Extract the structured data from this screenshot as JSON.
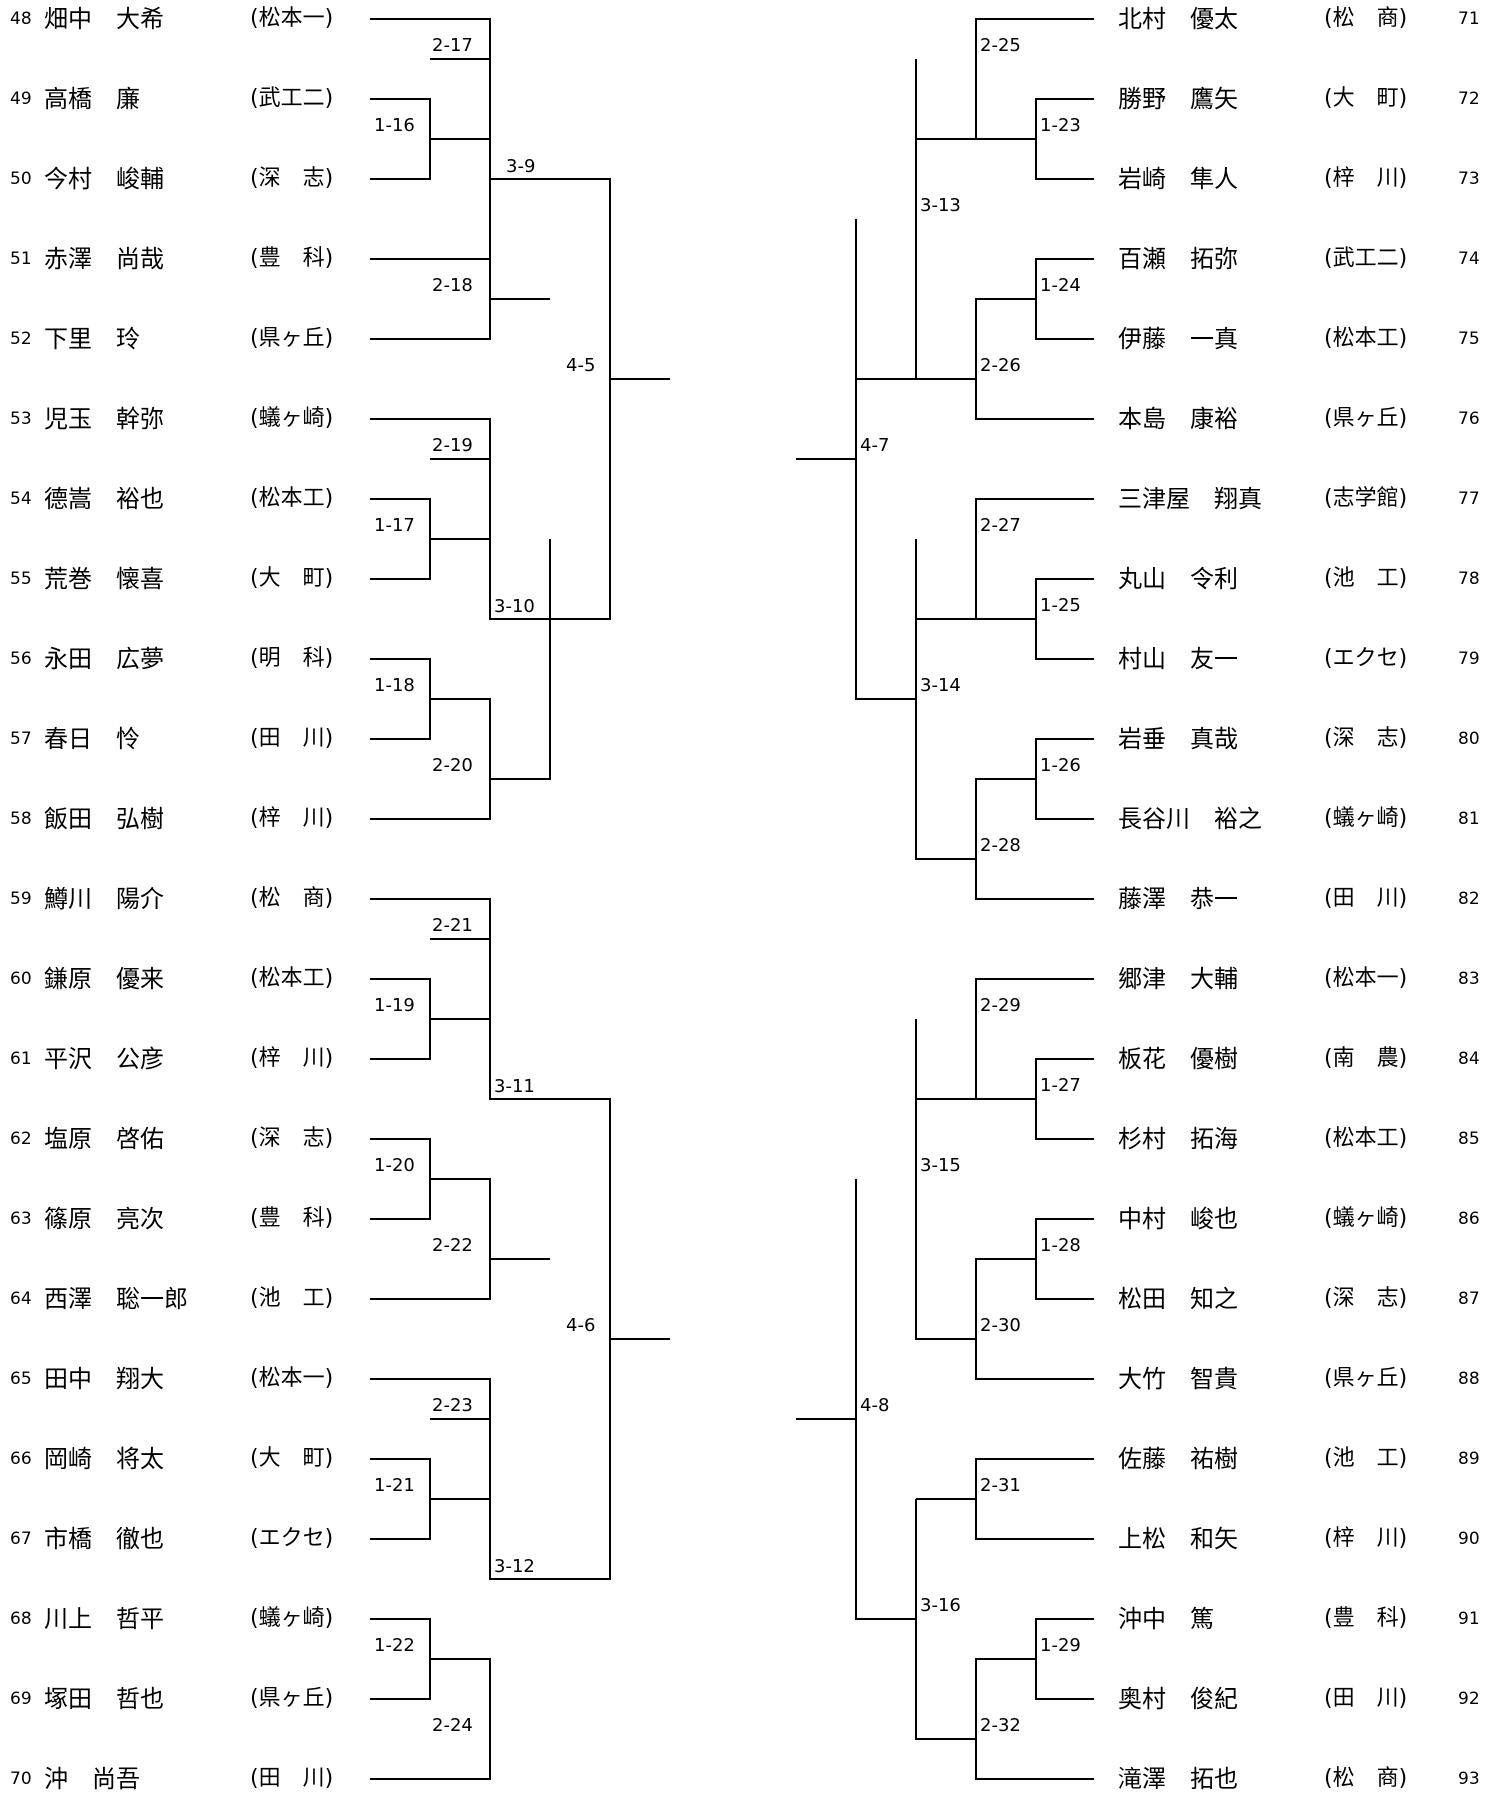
{
  "left_players": [
    {
      "num": "48",
      "name": "畑中　大希",
      "school": "(松本一)"
    },
    {
      "num": "49",
      "name": "高橋　廉",
      "school": "(武工二)"
    },
    {
      "num": "50",
      "name": "今村　峻輔",
      "school": "(深　志)"
    },
    {
      "num": "51",
      "name": "赤澤　尚哉",
      "school": "(豊　科)"
    },
    {
      "num": "52",
      "name": "下里　玲",
      "school": "(県ヶ丘)"
    },
    {
      "num": "53",
      "name": "児玉　幹弥",
      "school": "(蟻ヶ崎)"
    },
    {
      "num": "54",
      "name": "德嵩　裕也",
      "school": "(松本工)"
    },
    {
      "num": "55",
      "name": "荒巻　懐喜",
      "school": "(大　町)"
    },
    {
      "num": "56",
      "name": "永田　広夢",
      "school": "(明　科)"
    },
    {
      "num": "57",
      "name": "春日　怜",
      "school": "(田　川)"
    },
    {
      "num": "58",
      "name": "飯田　弘樹",
      "school": "(梓　川)"
    },
    {
      "num": "59",
      "name": "鱒川　陽介",
      "school": "(松　商)"
    },
    {
      "num": "60",
      "name": "鎌原　優来",
      "school": "(松本工)"
    },
    {
      "num": "61",
      "name": "平沢　公彦",
      "school": "(梓　川)"
    },
    {
      "num": "62",
      "name": "塩原　啓佑",
      "school": "(深　志)"
    },
    {
      "num": "63",
      "name": "篠原　亮次",
      "school": "(豊　科)"
    },
    {
      "num": "64",
      "name": "西澤　聡一郎",
      "school": "(池　工)"
    },
    {
      "num": "65",
      "name": "田中　翔大",
      "school": "(松本一)"
    },
    {
      "num": "66",
      "name": "岡崎　将太",
      "school": "(大　町)"
    },
    {
      "num": "67",
      "name": "市橋　徹也",
      "school": "(エクセ)"
    },
    {
      "num": "68",
      "name": "川上　哲平",
      "school": "(蟻ヶ崎)"
    },
    {
      "num": "69",
      "name": "塚田　哲也",
      "school": "(県ヶ丘)"
    },
    {
      "num": "70",
      "name": "沖　尚吾",
      "school": "(田　川)"
    }
  ],
  "right_players": [
    {
      "num": "71",
      "name": "北村　優太",
      "school": "(松　商)"
    },
    {
      "num": "72",
      "name": "勝野　鷹矢",
      "school": "(大　町)"
    },
    {
      "num": "73",
      "name": "岩崎　隼人",
      "school": "(梓　川)"
    },
    {
      "num": "74",
      "name": "百瀬　拓弥",
      "school": "(武工二)"
    },
    {
      "num": "75",
      "name": "伊藤　一真",
      "school": "(松本工)"
    },
    {
      "num": "76",
      "name": "本島　康裕",
      "school": "(県ヶ丘)"
    },
    {
      "num": "77",
      "name": "三津屋　翔真",
      "school": "(志学館)"
    },
    {
      "num": "78",
      "name": "丸山　令利",
      "school": "(池　工)"
    },
    {
      "num": "79",
      "name": "村山　友一",
      "school": "(エクセ)"
    },
    {
      "num": "80",
      "name": "岩垂　真哉",
      "school": "(深　志)"
    },
    {
      "num": "81",
      "name": "長谷川　裕之",
      "school": "(蟻ヶ崎)"
    },
    {
      "num": "82",
      "name": "藤澤　恭一",
      "school": "(田　川)"
    },
    {
      "num": "83",
      "name": "郷津　大輔",
      "school": "(松本一)"
    },
    {
      "num": "84",
      "name": "板花　優樹",
      "school": "(南　農)"
    },
    {
      "num": "85",
      "name": "杉村　拓海",
      "school": "(松本工)"
    },
    {
      "num": "86",
      "name": "中村　峻也",
      "school": "(蟻ヶ崎)"
    },
    {
      "num": "87",
      "name": "松田　知之",
      "school": "(深　志)"
    },
    {
      "num": "88",
      "name": "大竹　智貴",
      "school": "(県ヶ丘)"
    },
    {
      "num": "89",
      "name": "佐藤　祐樹",
      "school": "(池　工)"
    },
    {
      "num": "90",
      "name": "上松　和矢",
      "school": "(梓　川)"
    },
    {
      "num": "91",
      "name": "沖中　篤",
      "school": "(豊　科)"
    },
    {
      "num": "92",
      "name": "奥村　俊紀",
      "school": "(田　川)"
    },
    {
      "num": "93",
      "name": "滝澤　拓也",
      "school": "(松　商)"
    }
  ],
  "left_matches": {
    "m1_16": "1-16",
    "m1_17": "1-17",
    "m1_18": "1-18",
    "m1_19": "1-19",
    "m1_20": "1-20",
    "m1_21": "1-21",
    "m1_22": "1-22",
    "m2_17": "2-17",
    "m2_18": "2-18",
    "m2_19": "2-19",
    "m2_20": "2-20",
    "m2_21": "2-21",
    "m2_22": "2-22",
    "m2_23": "2-23",
    "m2_24": "2-24",
    "m3_9": "3-9",
    "m3_10": "3-10",
    "m3_11": "3-11",
    "m3_12": "3-12",
    "m4_5": "4-5",
    "m4_6": "4-6"
  },
  "right_matches": {
    "m1_23": "1-23",
    "m1_24": "1-24",
    "m1_25": "1-25",
    "m1_26": "1-26",
    "m1_27": "1-27",
    "m1_28": "1-28",
    "m1_29": "1-29",
    "m2_25": "2-25",
    "m2_26": "2-26",
    "m2_27": "2-27",
    "m2_28": "2-28",
    "m2_29": "2-29",
    "m2_30": "2-30",
    "m2_31": "2-31",
    "m2_32": "2-32",
    "m3_13": "3-13",
    "m3_14": "3-14",
    "m3_15": "3-15",
    "m3_16": "3-16",
    "m4_7": "4-7",
    "m4_8": "4-8"
  }
}
